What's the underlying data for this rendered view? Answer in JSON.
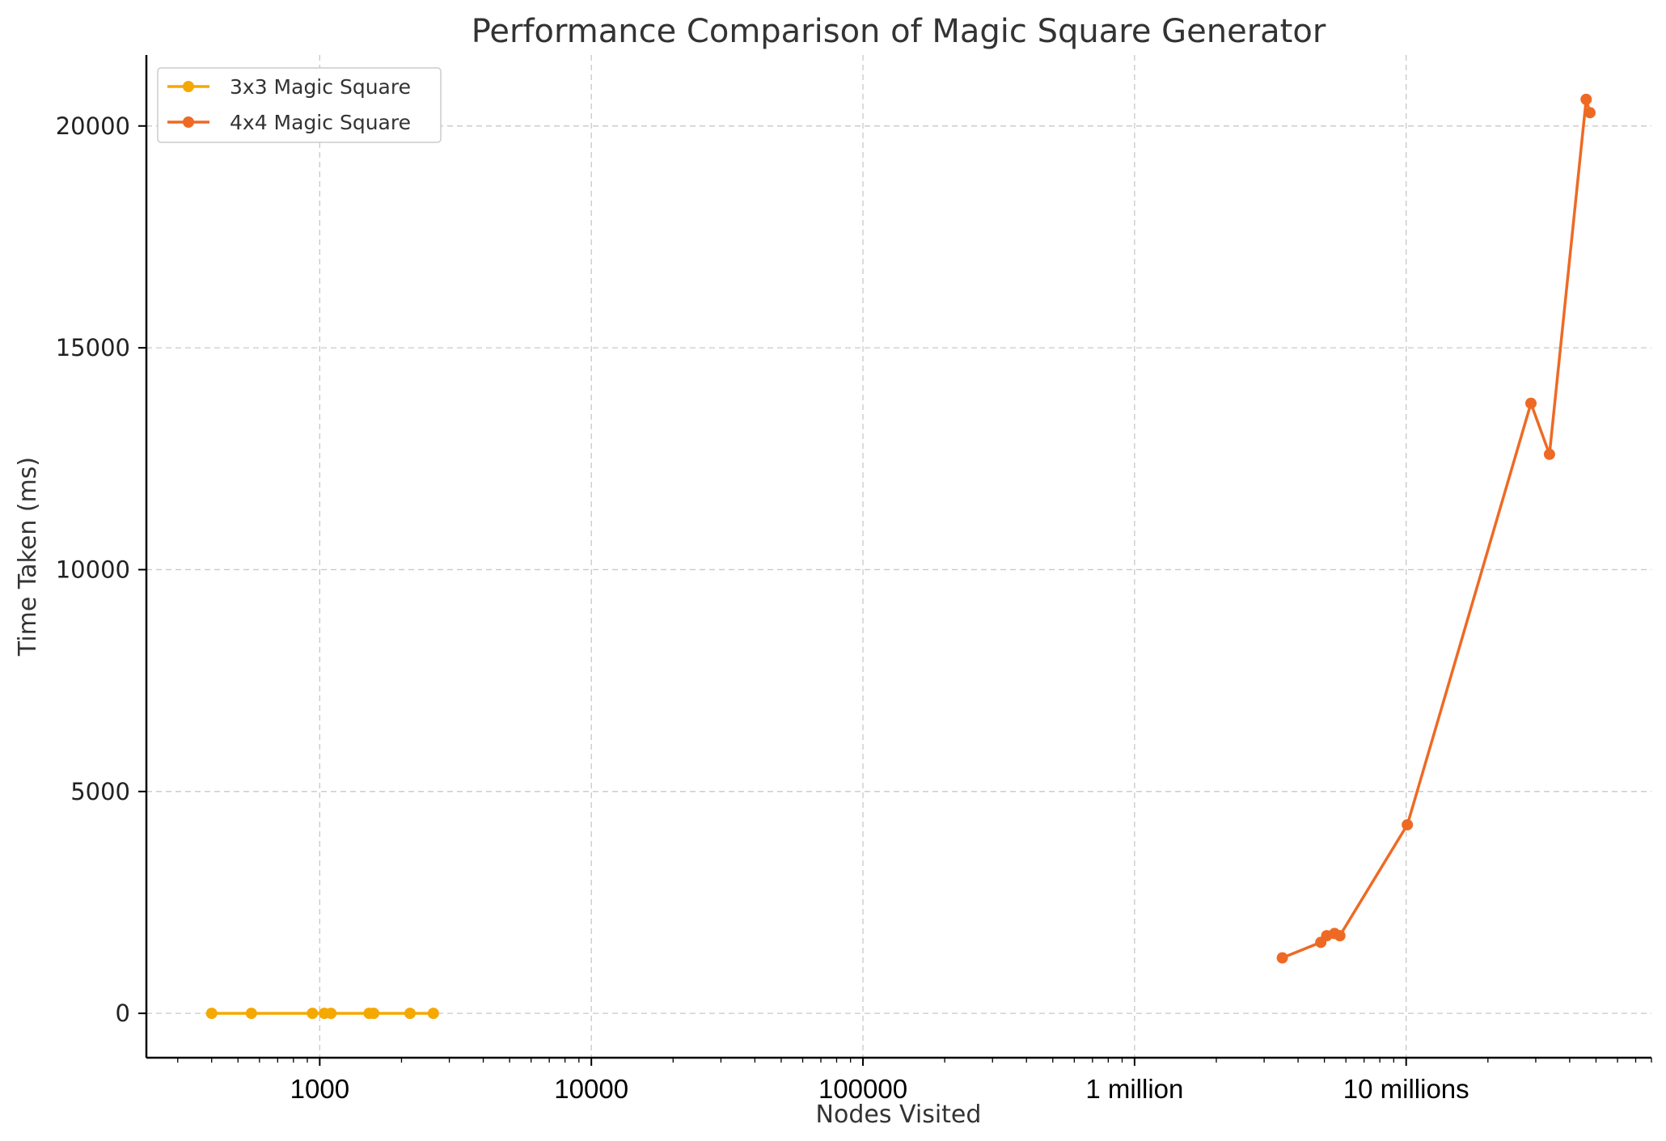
{
  "chart_data": {
    "type": "line",
    "title": "Performance Comparison of Magic Square Generator",
    "xlabel": "Nodes Visited",
    "ylabel": "Time Taken (ms)",
    "x_scale": "log",
    "xlim": [
      230,
      80000000
    ],
    "ylim": [
      -1000,
      21600
    ],
    "grid": true,
    "legend_position": "top-left",
    "x_ticks": [
      {
        "value": 1000,
        "label": "1000"
      },
      {
        "value": 10000,
        "label": "10000"
      },
      {
        "value": 100000,
        "label": "100000"
      },
      {
        "value": 1000000,
        "label": "1 million"
      },
      {
        "value": 10000000,
        "label": "10 millions"
      }
    ],
    "y_ticks": [
      {
        "value": 0,
        "label": "0"
      },
      {
        "value": 5000,
        "label": "5000"
      },
      {
        "value": 10000,
        "label": "10000"
      },
      {
        "value": 15000,
        "label": "15000"
      },
      {
        "value": 20000,
        "label": "20000"
      }
    ],
    "series": [
      {
        "name": "3x3 Magic Square",
        "color": "#F5A800",
        "x": [
          400,
          560,
          940,
          1040,
          1100,
          1520,
          1580,
          2150,
          2620
        ],
        "y": [
          0,
          0,
          0,
          0,
          0,
          0,
          0,
          0,
          0
        ]
      },
      {
        "name": "4x4 Magic Square",
        "color": "#EE6A24",
        "x": [
          3500000,
          4850000,
          5100000,
          5450000,
          5700000,
          10100000,
          28800000,
          33700000,
          46000000,
          47500000
        ],
        "y": [
          1250,
          1600,
          1750,
          1800,
          1750,
          4250,
          13750,
          12600,
          20600,
          20300
        ]
      }
    ]
  }
}
